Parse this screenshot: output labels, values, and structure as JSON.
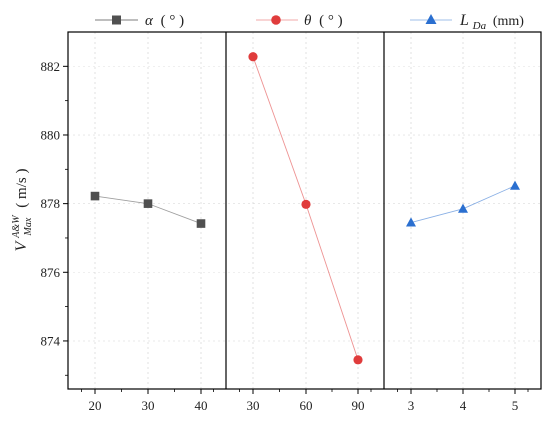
{
  "chart_data": {
    "type": "line",
    "ylabel": {
      "symbol": "V",
      "superscript": "A&W",
      "subscript": "Max",
      "unit": "( m/s )"
    },
    "ylim": [
      872.6,
      883.0
    ],
    "yticks": [
      874,
      876,
      878,
      880,
      882
    ],
    "grid": true,
    "panels": [
      {
        "name": "α ( ° )",
        "legend_symbol": "α",
        "legend_unit": "( ° )",
        "color": "#505050",
        "marker": "square",
        "categories": [
          "20",
          "30",
          "40"
        ],
        "values": [
          878.22,
          878.0,
          877.42
        ]
      },
      {
        "name": "θ ( ° )",
        "legend_symbol": "θ",
        "legend_unit": "( ° )",
        "color": "#e03c3c",
        "marker": "circle",
        "categories": [
          "30",
          "60",
          "90"
        ],
        "values": [
          882.28,
          877.98,
          873.45
        ]
      },
      {
        "name": "L_Da (mm)",
        "legend_symbol": "L",
        "legend_sub": "Da",
        "legend_unit": "(mm)",
        "color": "#2a6fd0",
        "marker": "triangle",
        "categories": [
          "3",
          "4",
          "5"
        ],
        "values": [
          877.45,
          877.85,
          878.52
        ]
      }
    ]
  }
}
